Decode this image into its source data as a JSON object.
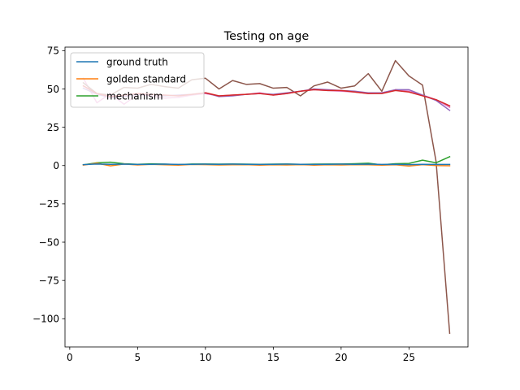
{
  "chart_data": {
    "type": "line",
    "title": "Testing on age",
    "xlabel": "",
    "ylabel": "",
    "xlim": [
      -0.35,
      29.35
    ],
    "ylim": [
      -118.4,
      77.3
    ],
    "x_ticks": [
      0,
      5,
      10,
      15,
      20,
      25
    ],
    "y_ticks": [
      75,
      50,
      25,
      0,
      -25,
      -50,
      -75,
      -100
    ],
    "x_tick_labels": [
      "0",
      "5",
      "10",
      "15",
      "20",
      "25"
    ],
    "y_tick_labels": [
      "75",
      "50",
      "25",
      "0",
      "−25",
      "−50",
      "−75",
      "−100"
    ],
    "grid": false,
    "legend_position": "upper-left",
    "legend": [
      "ground truth",
      "golden standard",
      "mechanism"
    ],
    "x": [
      1,
      2,
      3,
      4,
      5,
      6,
      7,
      8,
      9,
      10,
      11,
      12,
      13,
      14,
      15,
      16,
      17,
      18,
      19,
      20,
      21,
      22,
      23,
      24,
      25,
      26,
      27,
      28
    ],
    "series": [
      {
        "name": "ground truth",
        "color": "#1f77b4",
        "values": [
          0.6,
          1.0,
          0.8,
          0.9,
          0.7,
          0.8,
          0.9,
          0.7,
          0.8,
          0.9,
          0.8,
          0.9,
          0.8,
          0.7,
          0.8,
          0.9,
          0.8,
          0.7,
          0.8,
          0.9,
          0.8,
          0.9,
          0.7,
          0.8,
          0.6,
          0.8,
          0.7,
          0.7
        ]
      },
      {
        "name": "golden standard",
        "color": "#ff7f0e",
        "values": [
          0.3,
          1.5,
          -0.2,
          1.0,
          0.4,
          0.8,
          0.5,
          0.3,
          0.7,
          0.6,
          0.4,
          0.5,
          0.6,
          0.3,
          0.5,
          0.4,
          0.6,
          0.3,
          0.5,
          0.4,
          0.6,
          0.5,
          0.3,
          0.5,
          -0.3,
          0.6,
          0.0,
          -0.1
        ]
      },
      {
        "name": "mechanism",
        "color": "#2ca02c",
        "values": [
          0.5,
          1.8,
          2.2,
          1.2,
          0.8,
          1.1,
          0.9,
          0.6,
          1.0,
          1.0,
          0.9,
          1.0,
          0.9,
          0.8,
          0.9,
          1.0,
          0.8,
          0.9,
          1.0,
          1.0,
          1.2,
          1.5,
          0.5,
          1.2,
          1.4,
          3.5,
          1.8,
          5.8
        ]
      },
      {
        "name": "",
        "color": "#d62728",
        "values": [
          52.0,
          47.0,
          45.0,
          46.0,
          47.0,
          46.5,
          46.0,
          45.5,
          46.5,
          47.5,
          45.5,
          46.0,
          46.5,
          47.0,
          46.0,
          47.0,
          48.5,
          49.5,
          49.0,
          49.0,
          48.0,
          47.0,
          47.0,
          49.0,
          48.0,
          45.5,
          43.0,
          39.0
        ]
      },
      {
        "name": "",
        "color": "#9467bd",
        "values": [
          50.5,
          46.5,
          44.5,
          45.0,
          46.5,
          46.5,
          45.5,
          46.0,
          46.5,
          47.5,
          45.0,
          45.5,
          46.5,
          47.0,
          46.5,
          47.5,
          48.5,
          50.0,
          49.5,
          49.0,
          48.5,
          47.5,
          47.5,
          49.5,
          49.5,
          46.0,
          42.5,
          36.0
        ]
      },
      {
        "name": "",
        "color": "#8c564b",
        "values": [
          54.0,
          47.0,
          46.0,
          51.0,
          50.5,
          53.0,
          51.5,
          50.5,
          56.0,
          57.0,
          50.0,
          55.5,
          53.0,
          53.5,
          50.5,
          51.0,
          45.5,
          52.0,
          54.5,
          50.5,
          52.0,
          60.0,
          48.5,
          68.5,
          58.5,
          52.5,
          2.5,
          -109.5
        ]
      },
      {
        "name": "",
        "color": "#e377c2",
        "values": [
          57.0,
          41.0,
          47.0,
          40.0,
          46.5,
          45.5,
          44.0,
          44.5,
          46.0,
          47.0,
          45.5,
          46.0,
          46.5,
          47.5,
          46.0,
          47.0,
          48.5,
          49.5,
          49.0,
          48.5,
          48.0,
          47.0,
          47.5,
          49.5,
          48.5,
          46.0,
          43.0,
          38.0
        ]
      }
    ]
  }
}
